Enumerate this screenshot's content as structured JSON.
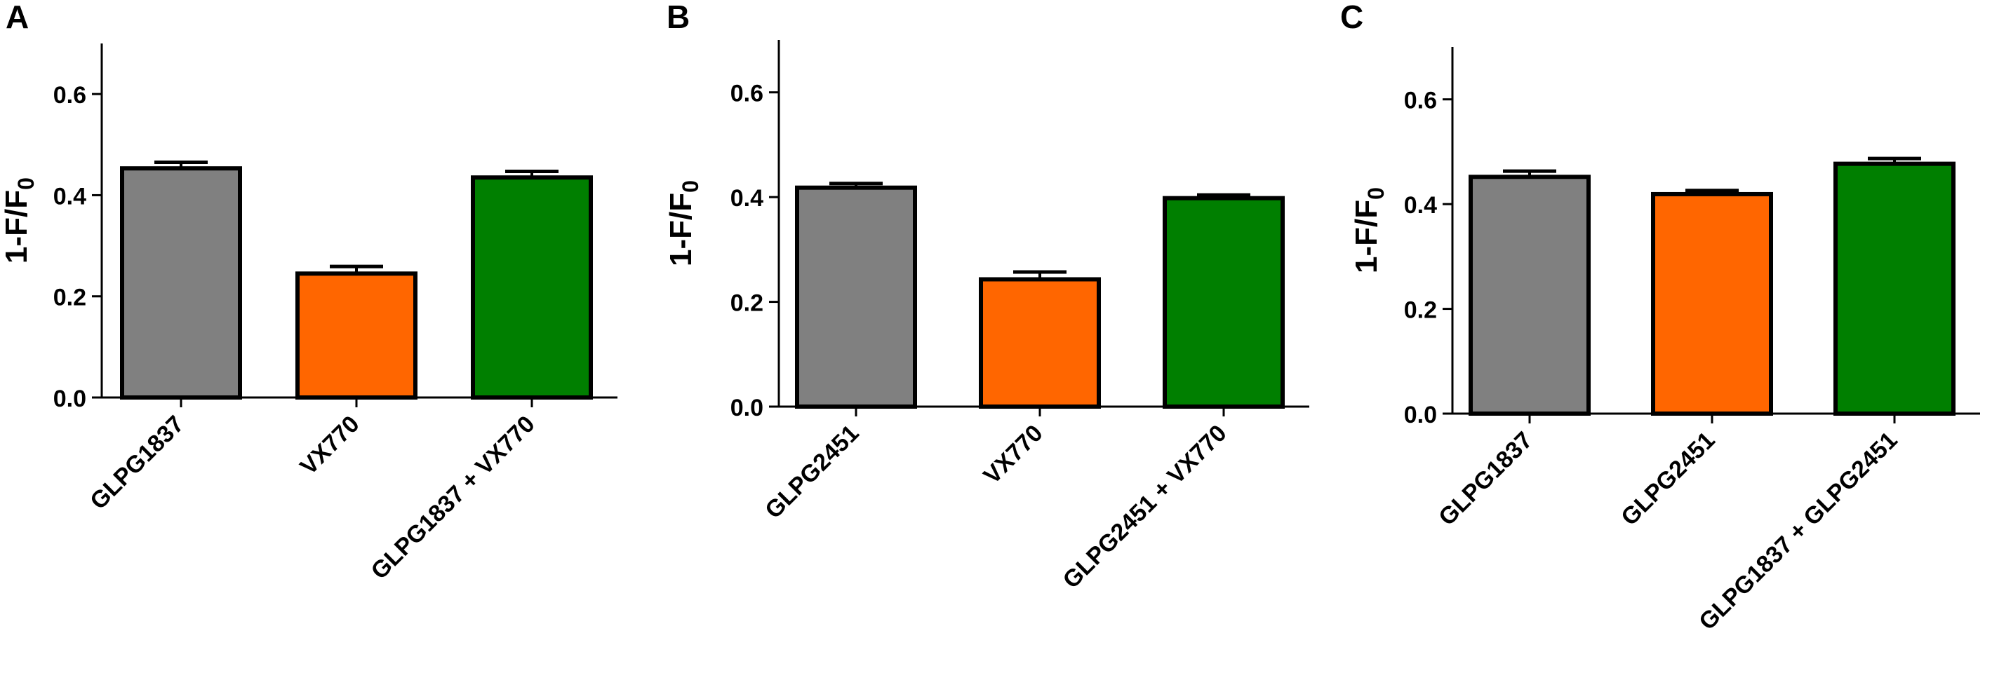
{
  "chart_data": [
    {
      "panel_letter": "A",
      "type": "bar",
      "ylabel": "1-F/F",
      "ylabel_subscript": "0",
      "ylim": [
        0,
        0.7
      ],
      "yticks": [
        "0.0",
        "0.2",
        "0.4",
        "0.6"
      ],
      "categories": [
        "GLPG1837",
        "VX770",
        "GLPG1837 + VX770"
      ],
      "values": [
        0.453,
        0.245,
        0.435
      ],
      "errors": [
        0.012,
        0.014,
        0.012
      ],
      "colors": [
        "#808080",
        "#ff6600",
        "#007f00"
      ]
    },
    {
      "panel_letter": "B",
      "type": "bar",
      "ylabel": "1-F/F",
      "ylabel_subscript": "0",
      "ylim": [
        0,
        0.7
      ],
      "yticks": [
        "0.0",
        "0.2",
        "0.4",
        "0.6"
      ],
      "categories": [
        "GLPG2451",
        "VX770",
        "GLPG2451 + VX770"
      ],
      "values": [
        0.418,
        0.243,
        0.398
      ],
      "errors": [
        0.008,
        0.014,
        0.006
      ],
      "colors": [
        "#808080",
        "#ff6600",
        "#007f00"
      ]
    },
    {
      "panel_letter": "C",
      "type": "bar",
      "ylabel": "1-F/F",
      "ylabel_subscript": "0",
      "ylim": [
        0,
        0.7
      ],
      "yticks": [
        "0.0",
        "0.2",
        "0.4",
        "0.6"
      ],
      "categories": [
        "GLPG1837",
        "GLPG2451",
        "GLPG1837 + GLPG2451"
      ],
      "values": [
        0.452,
        0.419,
        0.477
      ],
      "errors": [
        0.011,
        0.007,
        0.01
      ],
      "colors": [
        "#808080",
        "#ff6600",
        "#007f00"
      ]
    }
  ]
}
